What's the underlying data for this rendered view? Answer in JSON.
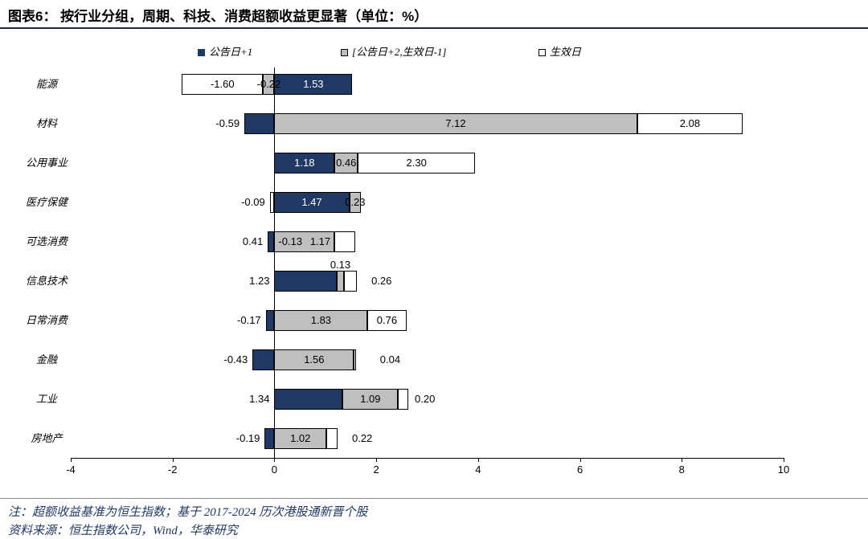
{
  "header": {
    "title": "图表6：  按行业分组，周期、科技、消费超额收益更显著（单位：%）"
  },
  "footer": {
    "note": "注：超额收益基准为恒生指数；基于 2017-2024 历次港股通新晋个股",
    "source": "资料来源：恒生指数公司，Wind，华泰研究"
  },
  "colors": {
    "announcement_blue": "#1F3864",
    "interim_gray": "#BFBFBF",
    "effective_white": "#FFFFFF",
    "axis": "#000000",
    "note_text": "#1F3864"
  },
  "chart_data": {
    "type": "bar",
    "orientation": "horizontal",
    "stacked": true,
    "unit": "%",
    "x_axis": {
      "min": -4,
      "max": 10,
      "ticks": [
        -4,
        -2,
        0,
        2,
        4,
        6,
        8,
        10
      ]
    },
    "legend_position": "top",
    "grid": false,
    "legend": [
      {
        "name": "公告日+1",
        "color": "#1F3864",
        "style": "filled"
      },
      {
        "name": "[公告日+2,生效日-1]",
        "color": "#BFBFBF",
        "style": "filled-border"
      },
      {
        "name": "生效日",
        "color": "#FFFFFF",
        "style": "border"
      }
    ],
    "series_keys": [
      "announcement_day_plus1",
      "interim_period",
      "effective_day"
    ],
    "rows": [
      {
        "category": "能源",
        "values": {
          "announcement_day_plus1": 1.53,
          "interim_period": -0.22,
          "effective_day": -1.6
        },
        "labels": [
          {
            "series": "effective_day",
            "text": "-1.60",
            "placement": "inside"
          },
          {
            "series": "interim_period",
            "text": "-0.22",
            "placement": "inside"
          },
          {
            "series": "announcement_day_plus1",
            "text": "1.53",
            "placement": "inside",
            "color": "#FFFFFF"
          }
        ]
      },
      {
        "category": "材料",
        "values": {
          "announcement_day_plus1": -0.59,
          "interim_period": 7.12,
          "effective_day": 2.08
        },
        "labels": [
          {
            "series": "announcement_day_plus1",
            "text": "-0.59",
            "placement": "left-out"
          },
          {
            "series": "interim_period",
            "text": "7.12",
            "placement": "inside"
          },
          {
            "series": "effective_day",
            "text": "2.08",
            "placement": "inside"
          }
        ]
      },
      {
        "category": "公用事业",
        "values": {
          "announcement_day_plus1": 1.18,
          "interim_period": 0.46,
          "effective_day": 2.3
        },
        "labels": [
          {
            "series": "announcement_day_plus1",
            "text": "1.18",
            "placement": "inside",
            "color": "#FFFFFF"
          },
          {
            "series": "interim_period",
            "text": "0.46",
            "placement": "inside"
          },
          {
            "series": "effective_day",
            "text": "2.30",
            "placement": "inside"
          }
        ]
      },
      {
        "category": "医疗保健",
        "values": {
          "announcement_day_plus1": 1.47,
          "interim_period": 0.23,
          "effective_day": -0.09
        },
        "labels": [
          {
            "series": "effective_day",
            "text": "-0.09",
            "placement": "left-out"
          },
          {
            "series": "announcement_day_plus1",
            "text": "1.47",
            "placement": "inside",
            "color": "#FFFFFF"
          },
          {
            "series": "interim_period",
            "text": "0.23",
            "placement": "inside"
          }
        ]
      },
      {
        "category": "可选消费",
        "values": {
          "announcement_day_plus1": -0.13,
          "interim_period": 1.17,
          "effective_day": 0.41
        },
        "labels": [
          {
            "series": "effective_day",
            "text": "0.41",
            "placement": "left-of-neg"
          },
          {
            "series": "announcement_day_plus1",
            "text": "-0.13",
            "placement": "axis-right"
          },
          {
            "series": "interim_period",
            "text": "1.17",
            "placement": "inside",
            "dx": 20
          }
        ]
      },
      {
        "category": "信息技术",
        "values": {
          "announcement_day_plus1": 1.23,
          "interim_period": 0.13,
          "effective_day": 0.26
        },
        "labels": [
          {
            "series": "announcement_day_plus1",
            "text": "1.23",
            "placement": "left-out"
          },
          {
            "series": "interim_period",
            "text": "0.13",
            "placement": "above"
          },
          {
            "series": "effective_day",
            "text": "0.26",
            "placement": "right-out",
            "dx": 10
          }
        ]
      },
      {
        "category": "日常消费",
        "values": {
          "announcement_day_plus1": -0.17,
          "interim_period": 1.83,
          "effective_day": 0.76
        },
        "labels": [
          {
            "series": "announcement_day_plus1",
            "text": "-0.17",
            "placement": "left-out"
          },
          {
            "series": "interim_period",
            "text": "1.83",
            "placement": "inside"
          },
          {
            "series": "effective_day",
            "text": "0.76",
            "placement": "inside"
          }
        ]
      },
      {
        "category": "金融",
        "values": {
          "announcement_day_plus1": -0.43,
          "interim_period": 1.56,
          "effective_day": 0.04
        },
        "labels": [
          {
            "series": "announcement_day_plus1",
            "text": "-0.43",
            "placement": "left-out"
          },
          {
            "series": "interim_period",
            "text": "1.56",
            "placement": "inside"
          },
          {
            "series": "effective_day",
            "text": "0.04",
            "placement": "right-out",
            "dx": 22
          }
        ]
      },
      {
        "category": "工业",
        "values": {
          "announcement_day_plus1": 1.34,
          "interim_period": 1.09,
          "effective_day": 0.2
        },
        "labels": [
          {
            "series": "announcement_day_plus1",
            "text": "1.34",
            "placement": "left-out"
          },
          {
            "series": "interim_period",
            "text": "1.09",
            "placement": "inside"
          },
          {
            "series": "effective_day",
            "text": "0.20",
            "placement": "right-out"
          }
        ]
      },
      {
        "category": "房地产",
        "values": {
          "announcement_day_plus1": -0.19,
          "interim_period": 1.02,
          "effective_day": 0.22
        },
        "labels": [
          {
            "series": "announcement_day_plus1",
            "text": "-0.19",
            "placement": "left-out"
          },
          {
            "series": "interim_period",
            "text": "1.02",
            "placement": "inside"
          },
          {
            "series": "effective_day",
            "text": "0.22",
            "placement": "right-out",
            "dx": 10
          }
        ]
      }
    ]
  }
}
